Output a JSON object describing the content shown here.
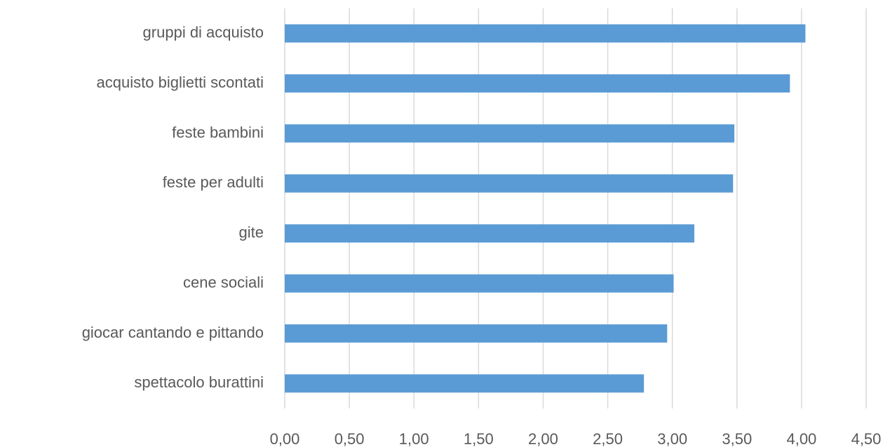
{
  "chart_data": {
    "type": "hbar",
    "categories": [
      "gruppi di acquisto",
      "acquisto biglietti scontati",
      "feste bambini",
      "feste per adulti",
      "gite",
      "cene sociali",
      "giocar cantando e pittando",
      "spettacolo burattini"
    ],
    "values": [
      4.03,
      3.91,
      3.48,
      3.47,
      3.17,
      3.01,
      2.96,
      2.78
    ],
    "color": "#5b9bd5",
    "xlim": [
      0,
      4.5
    ],
    "xticks": [
      {
        "value": 0,
        "label": "0,00"
      },
      {
        "value": 0.5,
        "label": "0,50"
      },
      {
        "value": 1,
        "label": "1,00"
      },
      {
        "value": 1.5,
        "label": "1,50"
      },
      {
        "value": 2,
        "label": "2,00"
      },
      {
        "value": 2.5,
        "label": "2,50"
      },
      {
        "value": 3,
        "label": "3,00"
      },
      {
        "value": 3.5,
        "label": "3,50"
      },
      {
        "value": 4,
        "label": "4,00"
      },
      {
        "value": 4.5,
        "label": "4,50"
      }
    ],
    "grid": true
  }
}
